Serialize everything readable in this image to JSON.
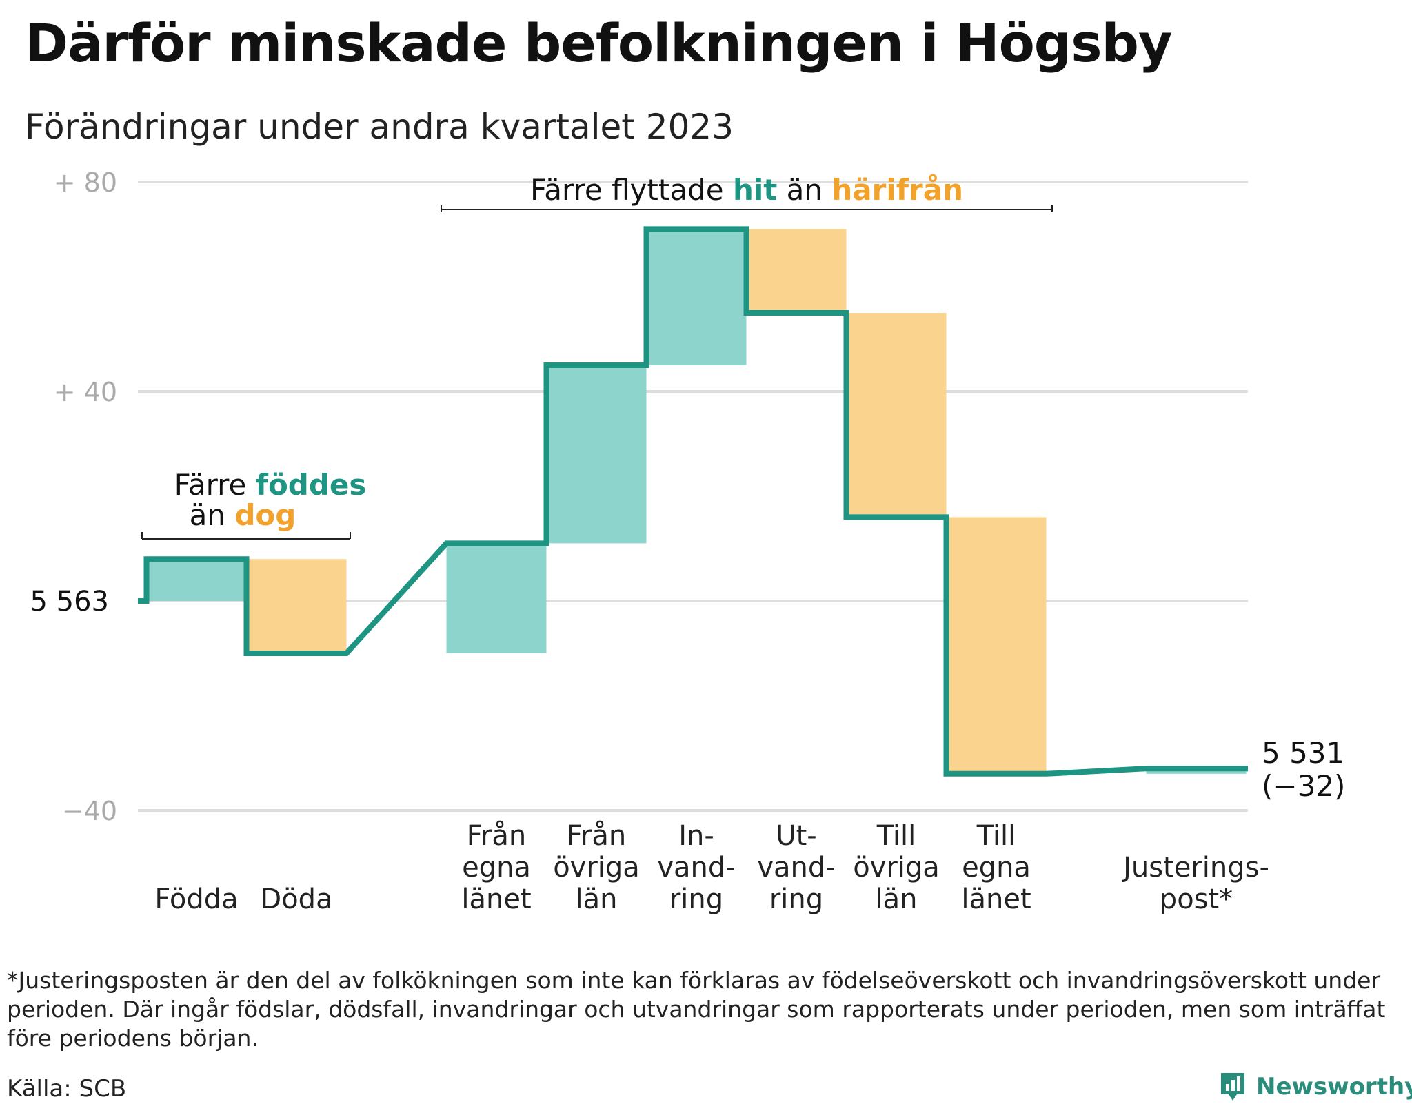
{
  "title": "Därför minskade befolkningen i Högsby",
  "subtitle": "Förändringar under andra kvartalet 2023",
  "chart_data": {
    "type": "waterfall",
    "baseline": 5563,
    "baseline_label": "5  563",
    "end_value": 5531,
    "end_label_line1": "5 531",
    "end_label_line2": "(−32)",
    "y_ticks": [
      {
        "value": 80,
        "label": "+  80"
      },
      {
        "value": 40,
        "label": "+  40"
      },
      {
        "value": -40,
        "label": "−40"
      }
    ],
    "ylim": [
      -40,
      80
    ],
    "grid": true,
    "colors": {
      "inflow": "#8dd4cc",
      "outflow": "#fad48e",
      "line": "#1e9483",
      "grid": "#dddddd",
      "tick_text": "#aaaaaa",
      "accent_orange": "#f2a22a"
    },
    "categories": [
      {
        "label_lines": [
          "Födda"
        ],
        "change": 8,
        "kind": "inflow"
      },
      {
        "label_lines": [
          "Döda"
        ],
        "change": -18,
        "kind": "outflow"
      },
      {
        "label_lines": [
          "Från",
          "egna",
          "länet"
        ],
        "change": 21,
        "kind": "inflow"
      },
      {
        "label_lines": [
          "Från",
          "övriga",
          "län"
        ],
        "change": 34,
        "kind": "inflow"
      },
      {
        "label_lines": [
          "In-",
          "vand-",
          "ring"
        ],
        "change": 26,
        "kind": "inflow"
      },
      {
        "label_lines": [
          "Ut-",
          "vand-",
          "ring"
        ],
        "change": -16,
        "kind": "outflow"
      },
      {
        "label_lines": [
          "Till",
          "övriga",
          "län"
        ],
        "change": -39,
        "kind": "outflow"
      },
      {
        "label_lines": [
          "Till",
          "egna",
          "länet"
        ],
        "change": -49,
        "kind": "outflow"
      },
      {
        "label_lines": [
          "Justerings-",
          "post*"
        ],
        "change": 1,
        "kind": "inflow"
      }
    ],
    "annotations": {
      "births": {
        "line1_plain": "Färre ",
        "line1_accent": "föddes",
        "line2_plain": "än ",
        "line2_accent": "dog"
      },
      "migration": {
        "plain1": "Färre flyttade ",
        "accent1": "hit",
        "plain2": " än ",
        "accent2": "härifrån"
      }
    }
  },
  "footnote": "*Justeringsposten är den del av folkökningen som inte kan förklaras av födelseöverskott och invandringsöverskott under perioden. Där ingår födslar, dödsfall, invandringar och utvandringar som rapporterats under perioden, men som inträffat före periodens början.",
  "source": "Källa: SCB",
  "brand": "Newsworthy"
}
